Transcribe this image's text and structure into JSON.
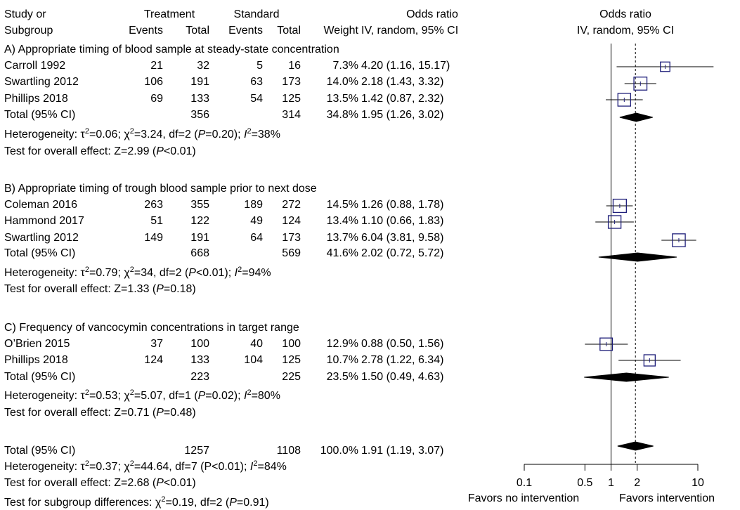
{
  "header": {
    "study_1": "Study or",
    "study_2": "Subgroup",
    "treatment": "Treatment",
    "standard": "Standard",
    "or_title": "Odds ratio",
    "events_t": "Events",
    "total_t": "Total",
    "events_s": "Events",
    "total_s": "Total",
    "weight": "Weight",
    "method": "IV, random, 95% CI",
    "plot_title": "Odds ratio",
    "plot_method": "IV, random, 95% CI"
  },
  "subgroups": [
    {
      "title": "A) Appropriate timing of blood sample at steady-state concentration",
      "studies": [
        {
          "name": "Carroll 1992",
          "events_t": "21",
          "total_t": "32",
          "events_s": "5",
          "total_s": "16",
          "weight": "7.3%",
          "ci_text": "4.20 (1.16, 15.17)"
        },
        {
          "name": "Swartling 2012",
          "events_t": "106",
          "total_t": "191",
          "events_s": "63",
          "total_s": "173",
          "weight": "14.0%",
          "ci_text": "2.18 (1.43, 3.32)"
        },
        {
          "name": "Phillips 2018",
          "events_t": "69",
          "total_t": "133",
          "events_s": "54",
          "total_s": "125",
          "weight": "13.5%",
          "ci_text": "1.42 (0.87, 2.32)"
        }
      ],
      "total": {
        "label": "Total (95% CI)",
        "total_t": "356",
        "total_s": "314",
        "weight": "34.8%",
        "ci_text": "1.95 (1.26, 3.02)"
      },
      "heterogeneity": {
        "prefix": "Heterogeneity: ",
        "tau": "τ",
        "tau_rest": "=0.06; ",
        "chi": "χ",
        "chi_rest": "=3.24, df=2 (",
        "p": "P",
        "p_rest": "=0.20); ",
        "i": "I",
        "i_rest": "=38%"
      },
      "overall": {
        "prefix": "Test for overall effect: Z=2.99 (",
        "p": "P",
        "rest": "<0.01)"
      }
    },
    {
      "title": "B) Appropriate timing of trough blood sample prior to next dose",
      "studies": [
        {
          "name": "Coleman 2016",
          "events_t": "263",
          "total_t": "355",
          "events_s": "189",
          "total_s": "272",
          "weight": "14.5%",
          "ci_text": "1.26 (0.88, 1.78)"
        },
        {
          "name": "Hammond 2017",
          "events_t": "51",
          "total_t": "122",
          "events_s": "49",
          "total_s": "124",
          "weight": "13.4%",
          "ci_text": "1.10 (0.66, 1.83)"
        },
        {
          "name": "Swartling 2012",
          "events_t": "149",
          "total_t": "191",
          "events_s": "64",
          "total_s": "173",
          "weight": "13.7%",
          "ci_text": "6.04 (3.81, 9.58)"
        }
      ],
      "total": {
        "label": "Total (95% CI)",
        "total_t": "668",
        "total_s": "569",
        "weight": "41.6%",
        "ci_text": "2.02 (0.72, 5.72)"
      },
      "heterogeneity": {
        "prefix": "Heterogeneity: ",
        "tau": "τ",
        "tau_rest": "=0.79; ",
        "chi": "χ",
        "chi_rest": "=34, df=2 (",
        "p": "P",
        "p_rest": "<0.01); ",
        "i": "I",
        "i_rest": "=94%"
      },
      "overall": {
        "prefix": "Test for overall effect: Z=1.33 (",
        "p": "P",
        "rest": "=0.18)"
      }
    },
    {
      "title": "C) Frequency of vancocymin concentrations in target range",
      "studies": [
        {
          "name": "O’Brien 2015",
          "events_t": "37",
          "total_t": "100",
          "events_s": "40",
          "total_s": "100",
          "weight": "12.9%",
          "ci_text": "0.88 (0.50, 1.56)"
        },
        {
          "name": "Phillips 2018",
          "events_t": "124",
          "total_t": "133",
          "events_s": "104",
          "total_s": "125",
          "weight": "10.7%",
          "ci_text": "2.78 (1.22, 6.34)"
        }
      ],
      "total": {
        "label": "Total (95% CI)",
        "total_t": "223",
        "total_s": "225",
        "weight": "23.5%",
        "ci_text": "1.50 (0.49, 4.63)"
      },
      "heterogeneity": {
        "prefix": "Heterogeneity: ",
        "tau": "τ",
        "tau_rest": "=0.53; ",
        "chi": "χ",
        "chi_rest": "=5.07, df=1 (",
        "p": "P",
        "p_rest": "=0.02); ",
        "i": "I",
        "i_rest": "=80%"
      },
      "overall": {
        "prefix": "Test for overall effect: Z=0.71 (",
        "p": "P",
        "rest": "=0.48)"
      }
    }
  ],
  "overall": {
    "total": {
      "label": "Total (95% CI)",
      "total_t": "1257",
      "total_s": "1108",
      "weight": "100.0%",
      "ci_text": "1.91 (1.19, 3.07)"
    },
    "heterogeneity": {
      "prefix": "Heterogeneity: ",
      "tau": "τ",
      "tau_rest": "=0.37; ",
      "chi": "χ",
      "chi_rest": "=44.64, df=7 (P<0.01); ",
      "i": "I",
      "i_rest": "=84%"
    },
    "overall": {
      "prefix": "Test for overall effect: Z=2.68 (",
      "p": "P",
      "rest": "<0.01)"
    },
    "subgroup_diff": {
      "prefix": "Test for subgroup differences: ",
      "chi": "χ",
      "chi_rest": "=0.19, df=2 (",
      "p": "P",
      "rest": "=0.91)"
    }
  },
  "plot": {
    "ticks": [
      "0.1",
      "0.5",
      "1",
      "2",
      "10"
    ],
    "favors_left": "Favors no intervention",
    "favors_right": "Favors intervention",
    "colors": {
      "box": "#1f1f7a",
      "line": "#000000",
      "diamond": "#000000"
    }
  },
  "chart_data": {
    "type": "forest",
    "scale": "log",
    "xlim": [
      0.1,
      10
    ],
    "x_ticks": [
      0.1,
      0.5,
      1,
      2,
      10
    ],
    "null_line": 1,
    "overall_line": 1.91,
    "rows": [
      {
        "kind": "study",
        "estimate": 4.2,
        "lower": 1.16,
        "upper": 15.17,
        "weight": 7.3
      },
      {
        "kind": "study",
        "estimate": 2.18,
        "lower": 1.43,
        "upper": 3.32,
        "weight": 14.0
      },
      {
        "kind": "study",
        "estimate": 1.42,
        "lower": 0.87,
        "upper": 2.32,
        "weight": 13.5
      },
      {
        "kind": "total",
        "estimate": 1.95,
        "lower": 1.26,
        "upper": 3.02
      },
      {
        "kind": "study",
        "estimate": 1.26,
        "lower": 0.88,
        "upper": 1.78,
        "weight": 14.5
      },
      {
        "kind": "study",
        "estimate": 1.1,
        "lower": 0.66,
        "upper": 1.83,
        "weight": 13.4
      },
      {
        "kind": "study",
        "estimate": 6.04,
        "lower": 3.81,
        "upper": 9.58,
        "weight": 13.7
      },
      {
        "kind": "total",
        "estimate": 2.02,
        "lower": 0.72,
        "upper": 5.72
      },
      {
        "kind": "study",
        "estimate": 0.88,
        "lower": 0.5,
        "upper": 1.56,
        "weight": 12.9
      },
      {
        "kind": "study",
        "estimate": 2.78,
        "lower": 1.22,
        "upper": 6.34,
        "weight": 10.7
      },
      {
        "kind": "total",
        "estimate": 1.5,
        "lower": 0.49,
        "upper": 4.63
      },
      {
        "kind": "total",
        "estimate": 1.91,
        "lower": 1.19,
        "upper": 3.07
      }
    ]
  }
}
